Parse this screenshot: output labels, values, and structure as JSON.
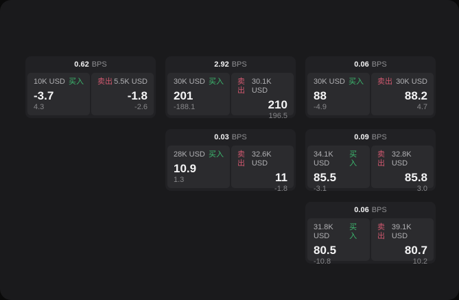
{
  "labels": {
    "bps_suffix": "BPS",
    "buy": "买入",
    "sell": "卖出"
  },
  "colors": {
    "buy_green": "#3cb96f",
    "sell_red": "#d1586f",
    "window_bg": "#1a1a1c",
    "card_bg": "#212124",
    "panel_bg": "#2b2b2e"
  },
  "cards": [
    {
      "row": 1,
      "col": 1,
      "bps": "0.62",
      "buy": {
        "amount": "10K USD",
        "price": "-3.7",
        "delta": "4.3"
      },
      "sell": {
        "amount": "5.5K USD",
        "price": "-1.8",
        "delta": "-2.6"
      }
    },
    {
      "row": 1,
      "col": 2,
      "bps": "2.92",
      "buy": {
        "amount": "30K USD",
        "price": "201",
        "delta": "-188.1"
      },
      "sell": {
        "amount": "30.1K USD",
        "price": "210",
        "delta": "196.5"
      }
    },
    {
      "row": 1,
      "col": 3,
      "bps": "0.06",
      "buy": {
        "amount": "30K USD",
        "price": "88",
        "delta": "-4.9"
      },
      "sell": {
        "amount": "30K USD",
        "price": "88.2",
        "delta": "4.7"
      }
    },
    {
      "row": 2,
      "col": 2,
      "bps": "0.03",
      "buy": {
        "amount": "28K USD",
        "price": "10.9",
        "delta": "1.3"
      },
      "sell": {
        "amount": "32.6K USD",
        "price": "11",
        "delta": "-1.8"
      }
    },
    {
      "row": 2,
      "col": 3,
      "bps": "0.09",
      "buy": {
        "amount": "34.1K USD",
        "price": "85.5",
        "delta": "-3.1"
      },
      "sell": {
        "amount": "32.8K USD",
        "price": "85.8",
        "delta": "3.0"
      }
    },
    {
      "row": 3,
      "col": 3,
      "bps": "0.06",
      "buy": {
        "amount": "31.8K USD",
        "price": "80.5",
        "delta": "-10.8"
      },
      "sell": {
        "amount": "39.1K USD",
        "price": "80.7",
        "delta": "10.2"
      }
    }
  ]
}
